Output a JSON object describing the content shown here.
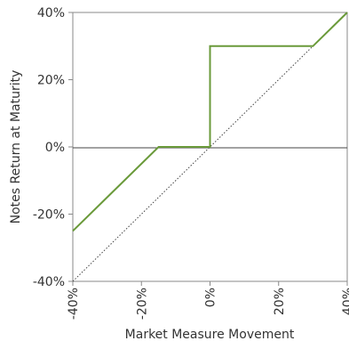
{
  "chart_data": {
    "type": "line",
    "title": "",
    "xlabel": "Market Measure Movement",
    "ylabel": "Notes Return at Maturity",
    "xlim": [
      -40,
      40
    ],
    "ylim": [
      -40,
      40
    ],
    "x_ticks": [
      "-40%",
      "-20%",
      "0%",
      "20%",
      "40%"
    ],
    "y_ticks": [
      "40%",
      "20%",
      "0%",
      "-20%",
      "-40%"
    ],
    "x_tick_values": [
      -40,
      -20,
      0,
      20,
      40
    ],
    "y_tick_values": [
      40,
      20,
      0,
      -20,
      -40
    ],
    "grid": false,
    "series": [
      {
        "color": "#6a9a3a",
        "points": [
          [
            -40,
            -25
          ],
          [
            -15,
            0
          ],
          [
            0,
            0
          ],
          [
            0,
            30
          ],
          [
            30,
            30
          ],
          [
            40,
            40
          ]
        ]
      },
      {
        "color": "#444444",
        "style": "dotted",
        "points": [
          [
            -40,
            -40
          ],
          [
            40,
            40
          ]
        ]
      }
    ],
    "reference_lines": [
      {
        "axis": "y",
        "value": 0
      }
    ]
  }
}
